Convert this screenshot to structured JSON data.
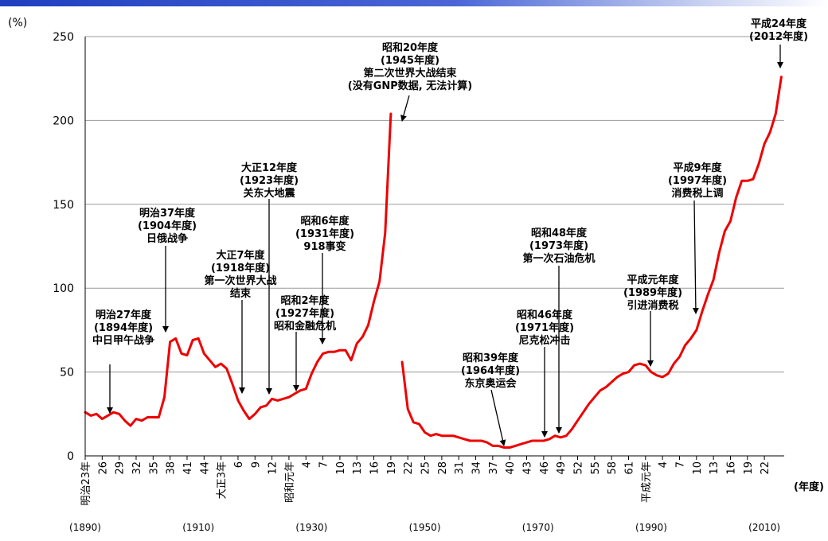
{
  "chart_data": {
    "type": "line",
    "y_unit": "(%)",
    "x_unit": "(年度)",
    "ylim": [
      0,
      250
    ],
    "y_ticks": [
      0,
      50,
      100,
      150,
      200,
      250
    ],
    "grid": "horizontal",
    "x_tick_labels": [
      {
        "year": 1890,
        "label": "明治23年"
      },
      {
        "year": 1893,
        "label": "26"
      },
      {
        "year": 1896,
        "label": "29"
      },
      {
        "year": 1899,
        "label": "32"
      },
      {
        "year": 1902,
        "label": "35"
      },
      {
        "year": 1905,
        "label": "38"
      },
      {
        "year": 1908,
        "label": "41"
      },
      {
        "year": 1911,
        "label": "44"
      },
      {
        "year": 1914,
        "label": "大正3年"
      },
      {
        "year": 1917,
        "label": "6"
      },
      {
        "year": 1920,
        "label": "9"
      },
      {
        "year": 1923,
        "label": "12"
      },
      {
        "year": 1926,
        "label": "昭和元年"
      },
      {
        "year": 1929,
        "label": "4"
      },
      {
        "year": 1932,
        "label": "7"
      },
      {
        "year": 1935,
        "label": "10"
      },
      {
        "year": 1938,
        "label": "13"
      },
      {
        "year": 1941,
        "label": "16"
      },
      {
        "year": 1944,
        "label": "19"
      },
      {
        "year": 1947,
        "label": "22"
      },
      {
        "year": 1950,
        "label": "25"
      },
      {
        "year": 1953,
        "label": "28"
      },
      {
        "year": 1956,
        "label": "31"
      },
      {
        "year": 1959,
        "label": "34"
      },
      {
        "year": 1962,
        "label": "37"
      },
      {
        "year": 1965,
        "label": "40"
      },
      {
        "year": 1968,
        "label": "43"
      },
      {
        "year": 1971,
        "label": "46"
      },
      {
        "year": 1974,
        "label": "49"
      },
      {
        "year": 1977,
        "label": "52"
      },
      {
        "year": 1980,
        "label": "55"
      },
      {
        "year": 1983,
        "label": "58"
      },
      {
        "year": 1986,
        "label": "61"
      },
      {
        "year": 1989,
        "label": "平成元年"
      },
      {
        "year": 1992,
        "label": "4"
      },
      {
        "year": 1995,
        "label": "7"
      },
      {
        "year": 1998,
        "label": "10"
      },
      {
        "year": 2001,
        "label": "13"
      },
      {
        "year": 2004,
        "label": "16"
      },
      {
        "year": 2007,
        "label": "19"
      },
      {
        "year": 2010,
        "label": "22"
      }
    ],
    "era_labels": [
      {
        "year": 1890,
        "label": "(1890)"
      },
      {
        "year": 1910,
        "label": "(1910)"
      },
      {
        "year": 1930,
        "label": "(1930)"
      },
      {
        "year": 1950,
        "label": "(1950)"
      },
      {
        "year": 1970,
        "label": "(1970)"
      },
      {
        "year": 1990,
        "label": "(1990)"
      },
      {
        "year": 2010,
        "label": "(2010)"
      }
    ],
    "series": [
      {
        "color": "#ee0000",
        "segments": [
          [
            [
              1890,
              26
            ],
            [
              1891,
              24
            ],
            [
              1892,
              25
            ],
            [
              1893,
              22
            ],
            [
              1894,
              24
            ],
            [
              1895,
              26
            ],
            [
              1896,
              25
            ],
            [
              1897,
              21
            ],
            [
              1898,
              18
            ],
            [
              1899,
              22
            ],
            [
              1900,
              21
            ],
            [
              1901,
              23
            ],
            [
              1902,
              23
            ],
            [
              1903,
              23
            ],
            [
              1904,
              35
            ],
            [
              1905,
              68
            ],
            [
              1906,
              70
            ],
            [
              1907,
              61
            ],
            [
              1908,
              60
            ],
            [
              1909,
              69
            ],
            [
              1910,
              70
            ],
            [
              1911,
              61
            ],
            [
              1912,
              57
            ],
            [
              1913,
              53
            ],
            [
              1914,
              55
            ],
            [
              1915,
              52
            ],
            [
              1916,
              43
            ],
            [
              1917,
              33
            ],
            [
              1918,
              27
            ],
            [
              1919,
              22
            ],
            [
              1920,
              25
            ],
            [
              1921,
              29
            ],
            [
              1922,
              30
            ],
            [
              1923,
              34
            ],
            [
              1924,
              33
            ],
            [
              1925,
              34
            ],
            [
              1926,
              35
            ],
            [
              1927,
              37
            ],
            [
              1928,
              39
            ],
            [
              1929,
              40
            ],
            [
              1930,
              49
            ],
            [
              1931,
              56
            ],
            [
              1932,
              61
            ],
            [
              1933,
              62
            ],
            [
              1934,
              62
            ],
            [
              1935,
              63
            ],
            [
              1936,
              63
            ],
            [
              1937,
              57
            ],
            [
              1938,
              67
            ],
            [
              1939,
              71
            ],
            [
              1940,
              78
            ],
            [
              1941,
              92
            ],
            [
              1942,
              104
            ],
            [
              1943,
              133
            ],
            [
              1944,
              204
            ]
          ],
          [
            [
              1946,
              56
            ],
            [
              1947,
              28
            ],
            [
              1948,
              20
            ],
            [
              1949,
              19
            ],
            [
              1950,
              14
            ],
            [
              1951,
              12
            ],
            [
              1952,
              13
            ],
            [
              1953,
              12
            ],
            [
              1954,
              12
            ],
            [
              1955,
              12
            ],
            [
              1956,
              11
            ],
            [
              1957,
              10
            ],
            [
              1958,
              9
            ],
            [
              1959,
              9
            ],
            [
              1960,
              9
            ],
            [
              1961,
              8
            ],
            [
              1962,
              6
            ],
            [
              1963,
              6
            ],
            [
              1964,
              5
            ],
            [
              1965,
              5
            ],
            [
              1966,
              6
            ],
            [
              1967,
              7
            ],
            [
              1968,
              8
            ],
            [
              1969,
              9
            ],
            [
              1970,
              9
            ],
            [
              1971,
              9
            ],
            [
              1972,
              10
            ],
            [
              1973,
              12
            ],
            [
              1974,
              11
            ],
            [
              1975,
              12
            ],
            [
              1976,
              16
            ],
            [
              1977,
              21
            ],
            [
              1978,
              26
            ],
            [
              1979,
              31
            ],
            [
              1980,
              35
            ],
            [
              1981,
              39
            ],
            [
              1982,
              41
            ],
            [
              1983,
              44
            ],
            [
              1984,
              47
            ],
            [
              1985,
              49
            ],
            [
              1986,
              50
            ],
            [
              1987,
              54
            ],
            [
              1988,
              55
            ],
            [
              1989,
              54
            ],
            [
              1990,
              50
            ],
            [
              1991,
              48
            ],
            [
              1992,
              47
            ],
            [
              1993,
              49
            ],
            [
              1994,
              55
            ],
            [
              1995,
              59
            ],
            [
              1996,
              66
            ],
            [
              1997,
              70
            ],
            [
              1998,
              75
            ],
            [
              1999,
              86
            ],
            [
              2000,
              96
            ],
            [
              2001,
              105
            ],
            [
              2002,
              121
            ],
            [
              2003,
              134
            ],
            [
              2004,
              140
            ],
            [
              2005,
              154
            ],
            [
              2006,
              164
            ],
            [
              2007,
              164
            ],
            [
              2008,
              165
            ],
            [
              2009,
              174
            ],
            [
              2010,
              186
            ],
            [
              2011,
              193
            ],
            [
              2012,
              204
            ],
            [
              2013,
              226
            ]
          ]
        ]
      }
    ],
    "annotations": [
      {
        "lines": [
          "明治27年度",
          "(1894年度)",
          "中日甲午战争"
        ],
        "arrow_year": 1894,
        "arrow_value": 24
      },
      {
        "lines": [
          "明治37年度",
          "(1904年度)",
          "日俄战争"
        ],
        "arrow_year": 1904,
        "arrow_value": 72
      },
      {
        "lines": [
          "大正7年度",
          "(1918年度)",
          "第一次世界大战",
          "结束"
        ],
        "arrow_year": 1917,
        "arrow_value": 36
      },
      {
        "lines": [
          "大正12年度",
          "(1923年度)",
          "关东大地震"
        ],
        "arrow_year": 1923,
        "arrow_value": 36
      },
      {
        "lines": [
          "昭和2年度",
          "(1927年度)",
          "昭和金融危机"
        ],
        "arrow_year": 1927,
        "arrow_value": 38
      },
      {
        "lines": [
          "昭和6年度",
          "(1931年度)",
          "918事变"
        ],
        "arrow_year": 1931,
        "arrow_value": 66
      },
      {
        "lines": [
          "昭和20年度",
          "(1945年度)",
          "第二次世界大战结束",
          "(没有GNP数据, 无法计算)"
        ],
        "arrow_year": 1945,
        "arrow_value": 200
      },
      {
        "lines": [
          "昭和39年度",
          "(1964年度)",
          "东京奥运会"
        ],
        "arrow_year": 1964,
        "arrow_value": 5
      },
      {
        "lines": [
          "昭和46年度",
          "(1971年度)",
          "尼克松冲击"
        ],
        "arrow_year": 1971,
        "arrow_value": 11
      },
      {
        "lines": [
          "昭和48年度",
          "(1973年度)",
          "第一次石油危机"
        ],
        "arrow_year": 1973,
        "arrow_value": 14
      },
      {
        "lines": [
          "平成元年度",
          "(1989年度)",
          "引进消费税"
        ],
        "arrow_year": 1989,
        "arrow_value": 53
      },
      {
        "lines": [
          "平成9年度",
          "(1997年度)",
          "消费税上调"
        ],
        "arrow_year": 1997,
        "arrow_value": 86
      },
      {
        "lines": [
          "平成24年度",
          "(2012年度)"
        ],
        "arrow_year": 2013,
        "arrow_value": 232
      }
    ]
  }
}
